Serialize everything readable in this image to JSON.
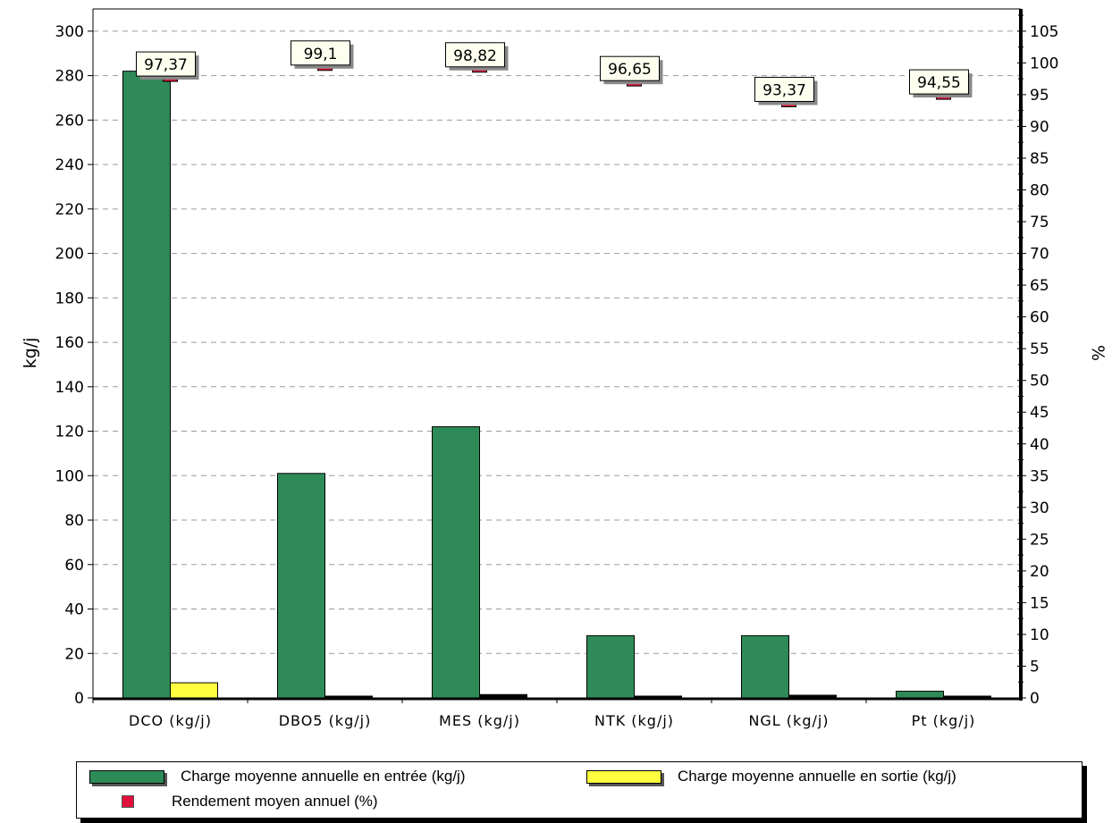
{
  "chart_data": {
    "type": "bar",
    "categories": [
      "DCO (kg/j)",
      "DBO5 (kg/j)",
      "MES (kg/j)",
      "NTK (kg/j)",
      "NGL (kg/j)",
      "Pt (kg/j)"
    ],
    "series": [
      {
        "name": "Charge moyenne annuelle en entrée (kg/j)",
        "axis": "left",
        "color": "#2e8b57",
        "values": [
          282,
          101,
          122,
          28,
          28,
          3
        ]
      },
      {
        "name": "Charge moyenne annuelle en sortie (kg/j)",
        "axis": "left",
        "color": "#ffff40",
        "values": [
          6.8,
          0.5,
          1.5,
          0.5,
          1.2,
          0.1
        ]
      },
      {
        "name": "Rendement moyen annuel (%)",
        "axis": "right",
        "color": "#e0103a",
        "values": [
          97.37,
          99.1,
          98.82,
          96.65,
          93.37,
          94.55
        ]
      }
    ],
    "percent_labels": [
      "97,37",
      "99,1",
      "98,82",
      "96,65",
      "93,37",
      "94,55"
    ],
    "ylabel": "kg/j",
    "ylabel_right": "%",
    "ylim": [
      0,
      310
    ],
    "ylim_right": [
      0,
      108.5
    ],
    "yticks": [
      "0",
      "20",
      "40",
      "60",
      "80",
      "100",
      "120",
      "140",
      "160",
      "180",
      "200",
      "220",
      "240",
      "260",
      "280",
      "300"
    ],
    "yticks_right": [
      "0",
      "5",
      "10",
      "15",
      "20",
      "25",
      "30",
      "35",
      "40",
      "45",
      "50",
      "55",
      "60",
      "65",
      "70",
      "75",
      "80",
      "85",
      "90",
      "95",
      "100",
      "105"
    ],
    "grid": true,
    "legend_position": "bottom"
  },
  "legend": {
    "entree": "Charge moyenne annuelle en entrée (kg/j)",
    "sortie": "Charge moyenne annuelle en sortie (kg/j)",
    "rendement": "Rendement moyen annuel (%)"
  },
  "colors": {
    "entree": "#2e8b57",
    "sortie": "#ffff40",
    "rendement": "#e0103a"
  }
}
